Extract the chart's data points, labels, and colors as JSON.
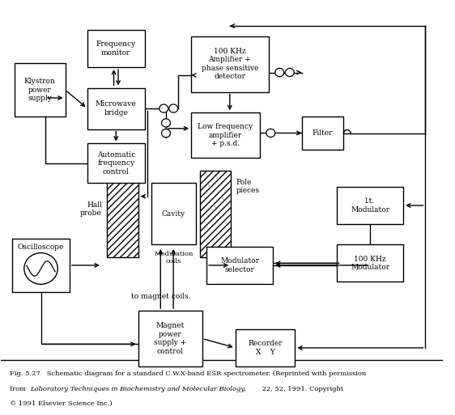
{
  "fig_width": 5.62,
  "fig_height": 5.13,
  "dpi": 100,
  "bg_color": "#ffffff",
  "boxes": {
    "klystron": [
      0.03,
      0.72,
      0.115,
      0.13
    ],
    "freq_mon": [
      0.195,
      0.84,
      0.13,
      0.09
    ],
    "mw_bridge": [
      0.195,
      0.69,
      0.13,
      0.1
    ],
    "auto_freq": [
      0.195,
      0.56,
      0.13,
      0.095
    ],
    "amp100": [
      0.43,
      0.78,
      0.175,
      0.135
    ],
    "low_amp": [
      0.43,
      0.62,
      0.155,
      0.11
    ],
    "filter": [
      0.68,
      0.64,
      0.095,
      0.08
    ],
    "lt_mod": [
      0.76,
      0.46,
      0.15,
      0.09
    ],
    "khz_mod": [
      0.76,
      0.32,
      0.15,
      0.09
    ],
    "mod_sel": [
      0.465,
      0.315,
      0.15,
      0.09
    ],
    "cavity": [
      0.34,
      0.41,
      0.1,
      0.15
    ],
    "magnet": [
      0.31,
      0.115,
      0.145,
      0.135
    ],
    "recorder": [
      0.53,
      0.115,
      0.135,
      0.09
    ],
    "oscilloscope": [
      0.025,
      0.295,
      0.13,
      0.13
    ]
  },
  "labels": {
    "klystron": "Klystron\npower\nsupply",
    "freq_mon": "Frequency\nmonitor",
    "mw_bridge": "Microwave\nbridge",
    "auto_freq": "Automatic\nfrequency\ncontrol",
    "amp100": "100 KHz\nAmplifier +\nphase sensitive\ndetector",
    "low_amp": "Low frequency\namplifier\n+ p.s.d.",
    "filter": "Filter",
    "lt_mod": "l.t.\nModulator",
    "khz_mod": "100 KHz\nModulator",
    "mod_sel": "Modulator\nselector",
    "cavity": "Cavity",
    "magnet": "Magnet\npower\nsupply +\ncontrol",
    "recorder": "Recorder\nX    Y",
    "oscilloscope": ""
  },
  "lpp": [
    0.24,
    0.38,
    0.07,
    0.21
  ],
  "rpp": [
    0.45,
    0.38,
    0.07,
    0.21
  ],
  "caption_line1": "Fig. 5.27   Schematic diagram for a standard C.W.X-band ESR spectrometer. (Reprinted with permission",
  "caption_line2a": "from ",
  "caption_line2b": "Laboratory Techniques in Biochemistry and Molecular Biology,",
  "caption_line2c": " 22, 52, 1991. Copyright",
  "caption_line3": "© 1991 Elsevier Science Inc.)"
}
